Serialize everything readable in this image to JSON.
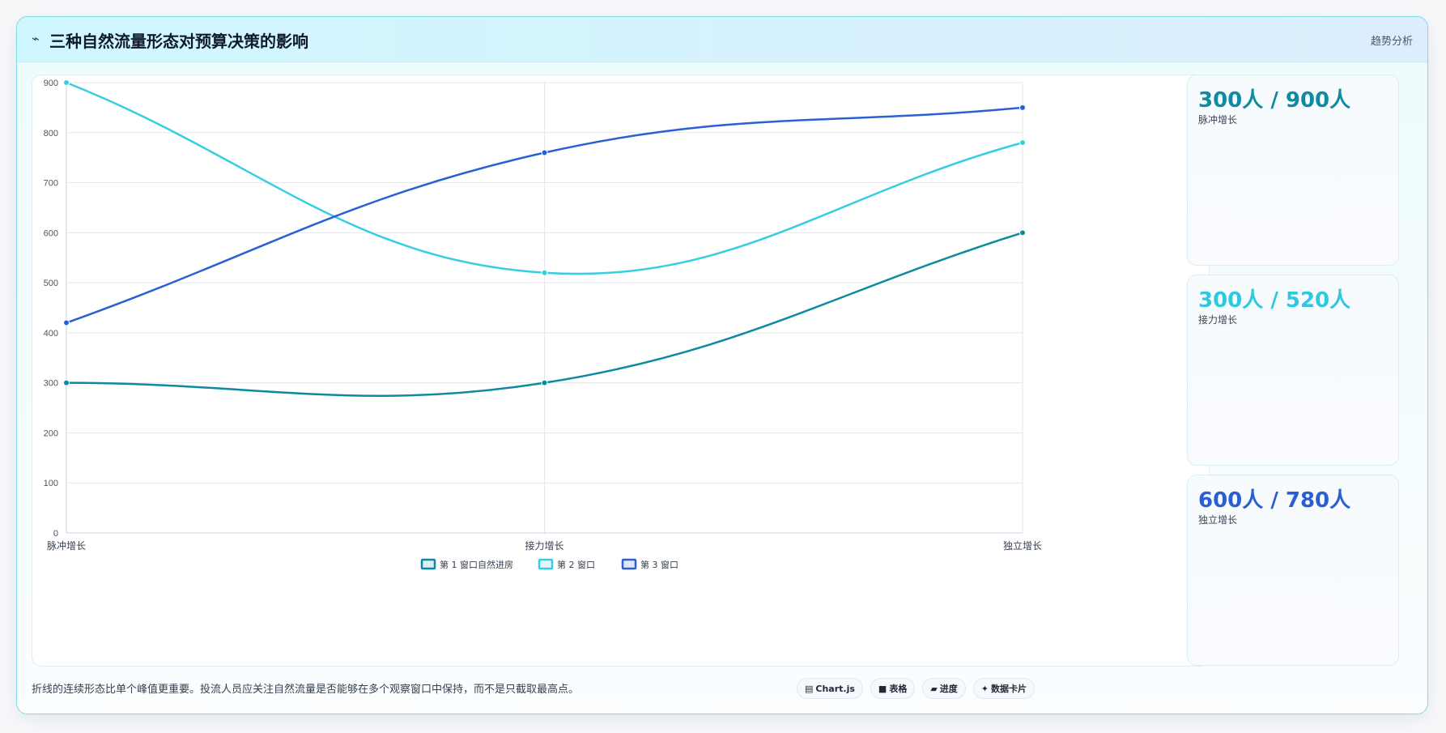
{
  "header": {
    "icon": "trend-line-icon",
    "title": "三种自然流量形态对预算决策的影响",
    "tag": "趋势分析"
  },
  "chart_data": {
    "type": "line",
    "title": "",
    "xlabel": "",
    "ylabel": "",
    "categories": [
      "脉冲增长",
      "接力增长",
      "独立增长"
    ],
    "ylim": [
      0,
      900
    ],
    "yticks": [
      0,
      100,
      200,
      300,
      400,
      500,
      600,
      700,
      800,
      900
    ],
    "grid": true,
    "legend_position": "bottom",
    "smooth": true,
    "series": [
      {
        "name": "第 1 窗口自然进房",
        "values": [
          300,
          300,
          600
        ],
        "color": "#0e8aa0"
      },
      {
        "name": "第 2 窗口",
        "values": [
          900,
          520,
          780
        ],
        "color": "#36cee0"
      },
      {
        "name": "第 3 窗口",
        "values": [
          420,
          760,
          850
        ],
        "color": "#2b5fd4"
      }
    ]
  },
  "stats": [
    {
      "value": "300人 / 900人",
      "label": "脉冲增长",
      "color": "#0f8aa3"
    },
    {
      "value": "300人 / 520人",
      "label": "接力增长",
      "color": "#2fc8de"
    },
    {
      "value": "600人 / 780人",
      "label": "独立增长",
      "color": "#2a5ed1"
    }
  ],
  "footer": {
    "note": "折线的连续形态比单个峰值更重要。投流人员应关注自然流量是否能够在多个观察窗口中保持，而不是只截取最高点。",
    "pills": [
      {
        "icon": "chart-icon",
        "glyph": "▤",
        "label": "Chart.js"
      },
      {
        "icon": "table-icon",
        "glyph": "■",
        "label": "表格"
      },
      {
        "icon": "progress-icon",
        "glyph": "▰",
        "label": "进度"
      },
      {
        "icon": "sparkle-icon",
        "glyph": "✦",
        "label": "数据卡片"
      }
    ]
  }
}
